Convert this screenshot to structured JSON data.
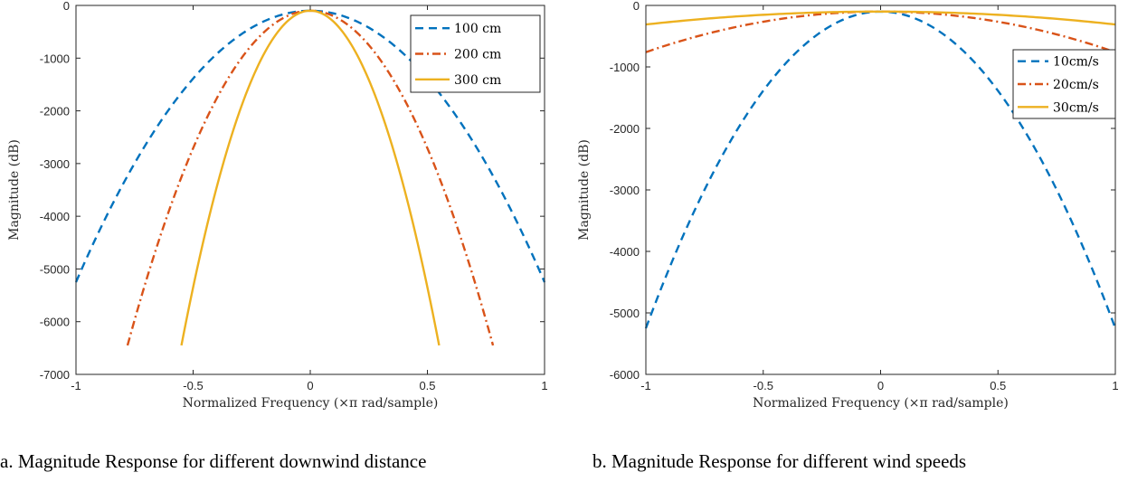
{
  "figure": {
    "caption_a": "a. Magnitude Response for different downwind distance",
    "caption_b": "b. Magnitude Response for different wind speeds"
  },
  "colors": {
    "series1": "#0072BD",
    "series2": "#D95319",
    "series3": "#EDB120"
  },
  "chart_data": [
    {
      "type": "line",
      "xlabel": "Normalized Frequency (×π rad/sample)",
      "ylabel": "Magnitude (dB)",
      "xlim": [
        -1,
        1
      ],
      "ylim": [
        -7000,
        0
      ],
      "xticks": [
        -1,
        -0.5,
        0,
        0.5,
        1
      ],
      "xtick_labels": [
        "-1",
        "-0.5",
        "0",
        "0.5",
        "1"
      ],
      "yticks": [
        0,
        -1000,
        -2000,
        -3000,
        -4000,
        -5000,
        -6000,
        -7000
      ],
      "ytick_labels": [
        "0",
        "-1000",
        "-2000",
        "-3000",
        "-4000",
        "-5000",
        "-6000",
        "-7000"
      ],
      "legend_position": "top-right",
      "grid": false,
      "series": [
        {
          "name": "100 cm",
          "style": "dashed",
          "color": "#0072BD",
          "x": [
            -1,
            -0.75,
            -0.5,
            -0.25,
            0,
            0.25,
            0.5,
            0.75,
            1
          ],
          "y": [
            -5250,
            -3020,
            -1400,
            -420,
            -100,
            -420,
            -1400,
            -3020,
            -5250
          ]
        },
        {
          "name": "200 cm",
          "style": "dash-dot",
          "color": "#D95319",
          "x": [
            -0.78,
            -0.6,
            -0.4,
            -0.2,
            0,
            0.2,
            0.4,
            0.6,
            0.78
          ],
          "y": [
            -6450,
            -3850,
            -1730,
            -490,
            -100,
            -490,
            -1730,
            -3850,
            -6450
          ]
        },
        {
          "name": "300 cm",
          "style": "solid",
          "color": "#EDB120",
          "x": [
            -0.55,
            -0.4,
            -0.25,
            -0.1,
            0,
            0.1,
            0.25,
            0.4,
            0.55
          ],
          "y": [
            -6450,
            -3420,
            -1400,
            -300,
            -100,
            -300,
            -1400,
            -3420,
            -6450
          ]
        }
      ]
    },
    {
      "type": "line",
      "xlabel": "Normalized Frequency (×π rad/sample)",
      "ylabel": "Magnitude (dB)",
      "xlim": [
        -1,
        1
      ],
      "ylim": [
        -6000,
        0
      ],
      "xticks": [
        -1,
        -0.5,
        0,
        0.5,
        1
      ],
      "xtick_labels": [
        "-1",
        "-0.5",
        "0",
        "0.5",
        "1"
      ],
      "yticks": [
        0,
        -1000,
        -2000,
        -3000,
        -4000,
        -5000,
        -6000
      ],
      "ytick_labels": [
        "0",
        "-1000",
        "-2000",
        "-3000",
        "-4000",
        "-5000",
        "-6000"
      ],
      "legend_position": "top-right",
      "grid": false,
      "series": [
        {
          "name": "10cm/s",
          "style": "dashed",
          "color": "#0072BD",
          "x": [
            -1,
            -0.75,
            -0.5,
            -0.25,
            0,
            0.25,
            0.5,
            0.75,
            1
          ],
          "y": [
            -5250,
            -3000,
            -1380,
            -410,
            -100,
            -410,
            -1380,
            -3000,
            -5250
          ]
        },
        {
          "name": "20cm/s",
          "style": "dash-dot",
          "color": "#D95319",
          "x": [
            -1,
            -0.75,
            -0.5,
            -0.25,
            0,
            0.25,
            0.5,
            0.75,
            1
          ],
          "y": [
            -760,
            -480,
            -270,
            -140,
            -100,
            -140,
            -270,
            -480,
            -760
          ]
        },
        {
          "name": "30cm/s",
          "style": "solid",
          "color": "#EDB120",
          "x": [
            -1,
            -0.75,
            -0.5,
            -0.25,
            0,
            0.25,
            0.5,
            0.75,
            1
          ],
          "y": [
            -310,
            -220,
            -160,
            -115,
            -100,
            -115,
            -160,
            -220,
            -310
          ]
        }
      ]
    }
  ]
}
